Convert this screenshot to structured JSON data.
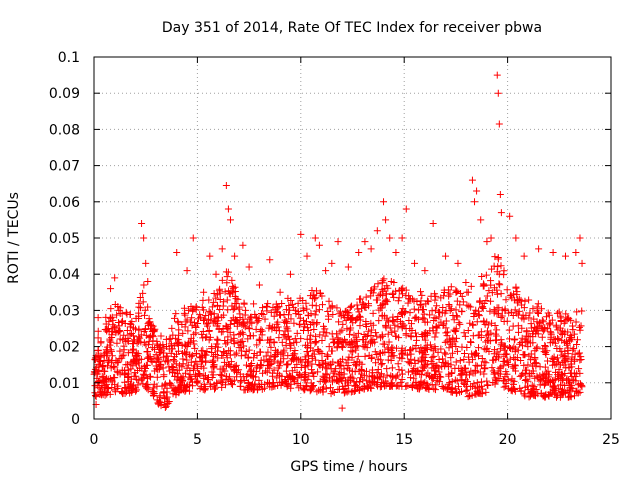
{
  "chart_data": {
    "type": "scatter",
    "title": "Day 351 of 2014, Rate Of TEC Index for receiver pbwa",
    "xlabel": "GPS time / hours",
    "ylabel": "ROTI / TECUs",
    "xlim": [
      0,
      25
    ],
    "ylim": [
      0,
      0.1
    ],
    "xticks": [
      {
        "value": 0,
        "label": "0"
      },
      {
        "value": 5,
        "label": "5"
      },
      {
        "value": 10,
        "label": "10"
      },
      {
        "value": 15,
        "label": "15"
      },
      {
        "value": 20,
        "label": "20"
      },
      {
        "value": 25,
        "label": "25"
      }
    ],
    "yticks": [
      {
        "value": 0,
        "label": "0"
      },
      {
        "value": 0.01,
        "label": "0.01"
      },
      {
        "value": 0.02,
        "label": "0.02"
      },
      {
        "value": 0.03,
        "label": "0.03"
      },
      {
        "value": 0.04,
        "label": "0.04"
      },
      {
        "value": 0.05,
        "label": "0.05"
      },
      {
        "value": 0.06,
        "label": "0.06"
      },
      {
        "value": 0.07,
        "label": "0.07"
      },
      {
        "value": 0.08,
        "label": "0.08"
      },
      {
        "value": 0.09,
        "label": "0.09"
      },
      {
        "value": 0.1,
        "label": "0.1"
      }
    ],
    "grid": true,
    "marker": "+",
    "marker_color": "#ff0000",
    "grid_color": "#a0a0a0",
    "series": [
      {
        "name": "ROTI",
        "points": [
          [
            0.1,
            0.004
          ],
          [
            0.2,
            0.028
          ],
          [
            0.5,
            0.018
          ],
          [
            0.8,
            0.036
          ],
          [
            1.0,
            0.039
          ],
          [
            1.2,
            0.03
          ],
          [
            2.3,
            0.054
          ],
          [
            2.4,
            0.05
          ],
          [
            2.5,
            0.043
          ],
          [
            2.6,
            0.038
          ],
          [
            3.2,
            0.006
          ],
          [
            3.4,
            0.004
          ],
          [
            3.5,
            0.022
          ],
          [
            4.0,
            0.046
          ],
          [
            4.5,
            0.041
          ],
          [
            4.8,
            0.05
          ],
          [
            5.3,
            0.035
          ],
          [
            5.6,
            0.045
          ],
          [
            5.9,
            0.04
          ],
          [
            6.2,
            0.047
          ],
          [
            6.4,
            0.0645
          ],
          [
            6.5,
            0.058
          ],
          [
            6.6,
            0.055
          ],
          [
            6.8,
            0.045
          ],
          [
            7.2,
            0.048
          ],
          [
            7.5,
            0.042
          ],
          [
            8.0,
            0.037
          ],
          [
            8.5,
            0.044
          ],
          [
            9.0,
            0.035
          ],
          [
            9.5,
            0.04
          ],
          [
            10.0,
            0.051
          ],
          [
            10.3,
            0.045
          ],
          [
            10.7,
            0.05
          ],
          [
            10.9,
            0.048
          ],
          [
            11.2,
            0.041
          ],
          [
            11.5,
            0.043
          ],
          [
            11.8,
            0.049
          ],
          [
            12.0,
            0.003
          ],
          [
            12.3,
            0.042
          ],
          [
            12.8,
            0.046
          ],
          [
            13.1,
            0.049
          ],
          [
            13.4,
            0.047
          ],
          [
            13.7,
            0.052
          ],
          [
            14.0,
            0.06
          ],
          [
            14.1,
            0.055
          ],
          [
            14.3,
            0.05
          ],
          [
            14.6,
            0.046
          ],
          [
            14.9,
            0.05
          ],
          [
            15.1,
            0.058
          ],
          [
            15.5,
            0.043
          ],
          [
            16.0,
            0.041
          ],
          [
            16.4,
            0.054
          ],
          [
            17.0,
            0.045
          ],
          [
            17.6,
            0.043
          ],
          [
            18.1,
            0.035
          ],
          [
            18.3,
            0.066
          ],
          [
            18.4,
            0.06
          ],
          [
            18.5,
            0.063
          ],
          [
            18.7,
            0.055
          ],
          [
            19.0,
            0.049
          ],
          [
            19.2,
            0.05
          ],
          [
            19.5,
            0.095
          ],
          [
            19.55,
            0.09
          ],
          [
            19.6,
            0.0815
          ],
          [
            19.65,
            0.062
          ],
          [
            19.7,
            0.057
          ],
          [
            20.1,
            0.056
          ],
          [
            20.4,
            0.05
          ],
          [
            20.8,
            0.045
          ],
          [
            21.5,
            0.047
          ],
          [
            22.2,
            0.046
          ],
          [
            22.8,
            0.045
          ],
          [
            23.3,
            0.046
          ],
          [
            23.5,
            0.05
          ],
          [
            23.6,
            0.043
          ]
        ],
        "envelope": {
          "x": [
            0,
            1,
            2,
            2.4,
            3,
            3.5,
            4,
            5,
            6,
            6.5,
            7,
            8,
            9,
            10,
            11,
            12,
            13,
            14,
            15,
            16,
            17,
            18,
            19,
            19.5,
            20,
            21,
            22,
            23,
            23.6
          ],
          "low": [
            0.008,
            0.009,
            0.009,
            0.012,
            0.006,
            0.005,
            0.009,
            0.01,
            0.01,
            0.012,
            0.01,
            0.01,
            0.011,
            0.01,
            0.009,
            0.009,
            0.01,
            0.011,
            0.011,
            0.01,
            0.01,
            0.008,
            0.009,
            0.012,
            0.01,
            0.008,
            0.008,
            0.008,
            0.009
          ],
          "high": [
            0.022,
            0.03,
            0.027,
            0.036,
            0.022,
            0.02,
            0.028,
            0.03,
            0.034,
            0.04,
            0.032,
            0.03,
            0.031,
            0.032,
            0.035,
            0.027,
            0.032,
            0.038,
            0.034,
            0.033,
            0.034,
            0.036,
            0.038,
            0.045,
            0.037,
            0.031,
            0.029,
            0.027,
            0.03
          ]
        }
      }
    ]
  }
}
